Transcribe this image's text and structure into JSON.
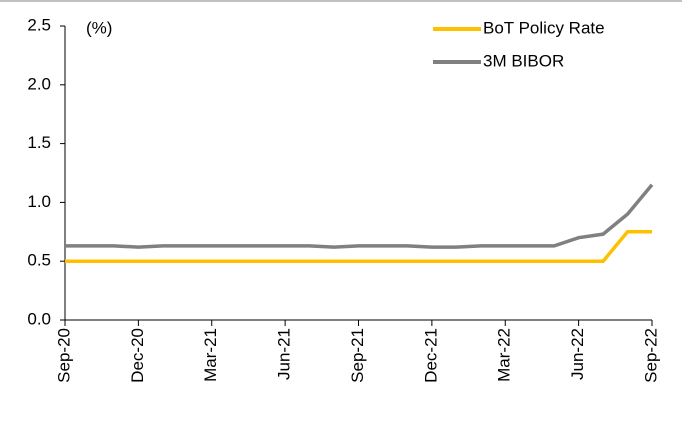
{
  "chart_data": {
    "type": "line",
    "annotation": "(%)",
    "categories": [
      "Sep-20",
      null,
      null,
      "Dec-20",
      null,
      null,
      "Mar-21",
      null,
      null,
      "Jun-21",
      null,
      null,
      "Sep-21",
      null,
      null,
      "Dec-21",
      null,
      null,
      "Mar-22",
      null,
      null,
      "Jun-22",
      null,
      null,
      "Sep-22"
    ],
    "series": [
      {
        "name": "BoT Policy Rate",
        "color": "#FFC000",
        "values": [
          0.5,
          0.5,
          0.5,
          0.5,
          0.5,
          0.5,
          0.5,
          0.5,
          0.5,
          0.5,
          0.5,
          0.5,
          0.5,
          0.5,
          0.5,
          0.5,
          0.5,
          0.5,
          0.5,
          0.5,
          0.5,
          0.5,
          0.5,
          0.75,
          0.75
        ]
      },
      {
        "name": "3M BIBOR",
        "color": "#808080",
        "values": [
          0.63,
          0.63,
          0.63,
          0.62,
          0.63,
          0.63,
          0.63,
          0.63,
          0.63,
          0.63,
          0.63,
          0.62,
          0.63,
          0.63,
          0.63,
          0.62,
          0.62,
          0.63,
          0.63,
          0.63,
          0.63,
          0.7,
          0.73,
          0.9,
          1.15
        ]
      }
    ],
    "ylim": [
      0,
      2.5
    ],
    "yticks": [
      {
        "value": 0,
        "label": "0.0"
      },
      0.5,
      {
        "value": 1,
        "label": "1.0"
      },
      1.5,
      {
        "value": 2,
        "label": "2.0"
      },
      2.5
    ],
    "legend": "top-right"
  }
}
